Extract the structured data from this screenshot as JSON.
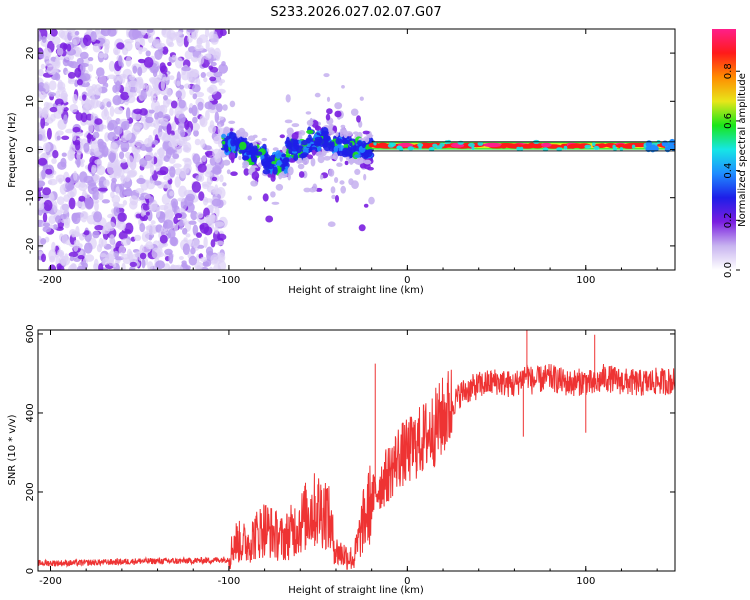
{
  "figure_title": "S233.2026.027.02.07.G07",
  "colors": {
    "snr_line": "#ee3333",
    "axis": "#000000",
    "background": "#ffffff",
    "colormap": [
      "#ffffff",
      "#c8b4f0",
      "#7a1ee0",
      "#1e1ee8",
      "#1f8cff",
      "#16e6e6",
      "#19e619",
      "#e8e61a",
      "#ff8c00",
      "#ff1a1a",
      "#ff1f8a"
    ]
  },
  "chart_data": [
    {
      "type": "heatmap",
      "title": "S233.2026.027.02.07.G07",
      "xlabel": "Height of straight line (km)",
      "ylabel": "Frequency (Hz)",
      "xlim": [
        -207,
        150
      ],
      "ylim": [
        -25,
        25
      ],
      "xticks": [
        -200,
        -100,
        0,
        100
      ],
      "yticks": [
        -20,
        -10,
        0,
        10,
        20
      ],
      "colorbar": {
        "label": "Normalized spectral amplitude",
        "range": [
          0.0,
          0.97
        ],
        "ticks": [
          0.0,
          0.2,
          0.4,
          0.6,
          0.8
        ]
      },
      "regions": [
        {
          "name": "noise",
          "x_range": [
            -207,
            -103
          ],
          "freq_range": [
            -25,
            25
          ],
          "amplitude_range": [
            0.0,
            0.15
          ]
        },
        {
          "name": "transition",
          "x_range": [
            -103,
            -20
          ],
          "freq_center": [
            1,
            -1,
            -3,
            0,
            2,
            1,
            0
          ],
          "spread_hz": [
            2,
            5,
            12
          ],
          "amplitude_range": [
            0.1,
            0.45
          ]
        },
        {
          "name": "tone",
          "x_range": [
            -20,
            150
          ],
          "freq_hz": 0.8,
          "amplitude_range": [
            0.6,
            0.97
          ]
        }
      ],
      "reference_line_hz": [
        -0.3,
        1.6
      ]
    },
    {
      "type": "line",
      "xlabel": "Height of straight line (km)",
      "ylabel": "SNR (10 * v/v)",
      "xlim": [
        -207,
        150
      ],
      "ylim": [
        0,
        610
      ],
      "xticks": [
        -200,
        -100,
        0,
        100
      ],
      "yticks": [
        0,
        200,
        400,
        600
      ],
      "series": [
        {
          "name": "SNR",
          "x": [
            -207,
            -190,
            -170,
            -150,
            -130,
            -110,
            -100,
            -97,
            -90,
            -80,
            -70,
            -60,
            -55,
            -50,
            -45,
            -40,
            -35,
            -30,
            -25,
            -20,
            -15,
            -10,
            -5,
            0,
            5,
            10,
            15,
            20,
            25,
            30,
            40,
            50,
            60,
            67,
            70,
            80,
            90,
            100,
            105,
            110,
            120,
            130,
            140,
            150
          ],
          "y": [
            20,
            20,
            22,
            25,
            25,
            27,
            30,
            75,
            70,
            110,
            80,
            120,
            150,
            155,
            150,
            50,
            40,
            30,
            120,
            180,
            220,
            250,
            290,
            300,
            320,
            340,
            360,
            390,
            420,
            450,
            470,
            480,
            470,
            500,
            480,
            490,
            475,
            480,
            470,
            490,
            480,
            475,
            480,
            480
          ]
        }
      ],
      "spikes": [
        {
          "x": -18,
          "y": 525
        },
        {
          "x": 67,
          "y": 610
        },
        {
          "x": 105,
          "y": 598
        },
        {
          "x": 65,
          "y": 340
        },
        {
          "x": 100,
          "y": 350
        }
      ]
    }
  ]
}
